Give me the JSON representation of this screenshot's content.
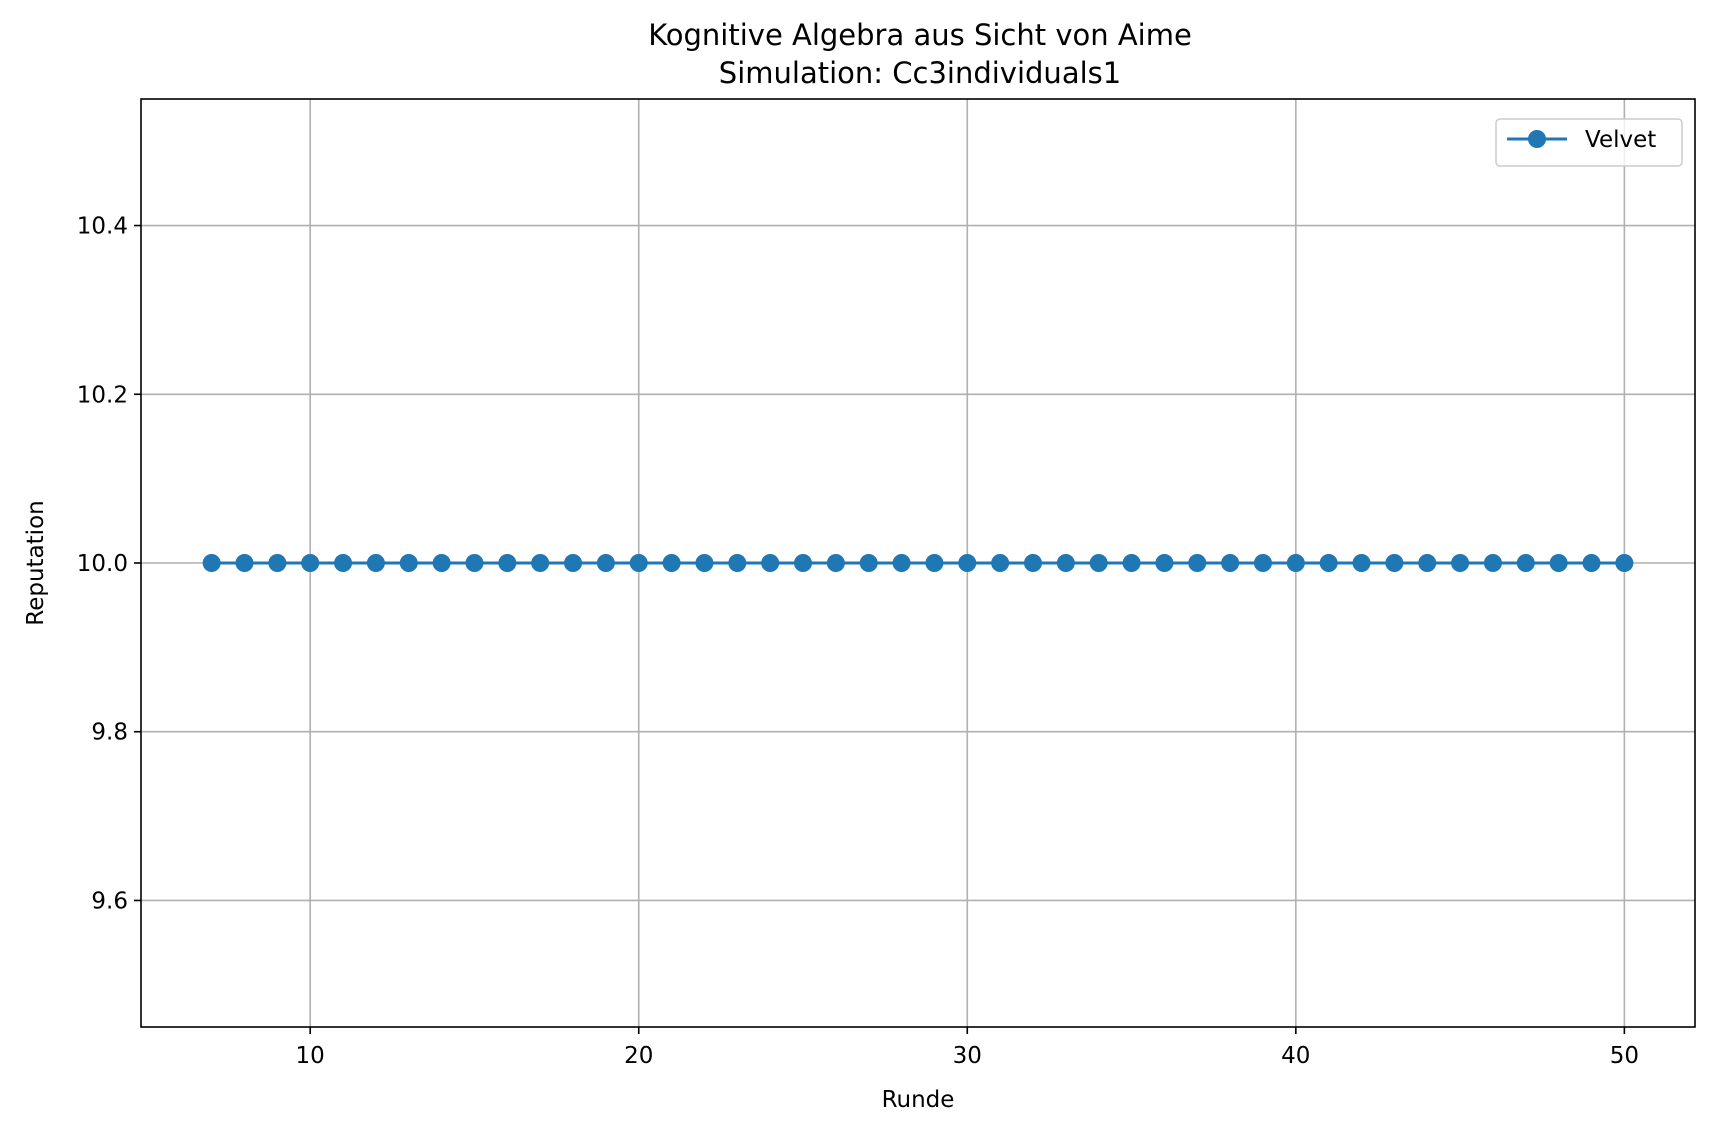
{
  "chart_data": {
    "type": "line",
    "title": "Kognitive Algebra aus Sicht von Aime",
    "subtitle": "Simulation: Cc3individuals1",
    "xlabel": "Runde",
    "ylabel": "Reputation",
    "xlim": [
      4.85,
      52.15
    ],
    "ylim": [
      9.45,
      10.55
    ],
    "xticks": [
      10,
      20,
      30,
      40,
      50
    ],
    "xtick_labels": [
      "10",
      "20",
      "30",
      "40",
      "50"
    ],
    "yticks": [
      9.6,
      9.8,
      10.0,
      10.2,
      10.4
    ],
    "ytick_labels": [
      "9.6",
      "9.8",
      "10.0",
      "10.2",
      "10.4"
    ],
    "grid": true,
    "legend_position": "top-right",
    "series": [
      {
        "name": "Velvet",
        "color": "#1f77b4",
        "marker": "circle",
        "x": [
          7,
          8,
          9,
          10,
          11,
          12,
          13,
          14,
          15,
          16,
          17,
          18,
          19,
          20,
          21,
          22,
          23,
          24,
          25,
          26,
          27,
          28,
          29,
          30,
          31,
          32,
          33,
          34,
          35,
          36,
          37,
          38,
          39,
          40,
          41,
          42,
          43,
          44,
          45,
          46,
          47,
          48,
          49,
          50
        ],
        "y": [
          10.0,
          10.0,
          10.0,
          10.0,
          10.0,
          10.0,
          10.0,
          10.0,
          10.0,
          10.0,
          10.0,
          10.0,
          10.0,
          10.0,
          10.0,
          10.0,
          10.0,
          10.0,
          10.0,
          10.0,
          10.0,
          10.0,
          10.0,
          10.0,
          10.0,
          10.0,
          10.0,
          10.0,
          10.0,
          10.0,
          10.0,
          10.0,
          10.0,
          10.0,
          10.0,
          10.0,
          10.0,
          10.0,
          10.0,
          10.0,
          10.0,
          10.0,
          10.0,
          10.0
        ]
      }
    ]
  }
}
